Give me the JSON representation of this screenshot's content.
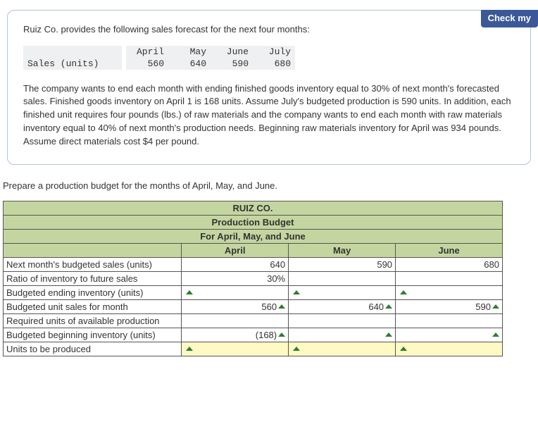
{
  "header": {
    "check_button": "Check my"
  },
  "problem": {
    "intro": "Ruiz Co. provides the following sales forecast for the next four months:",
    "forecast": {
      "row_label": "Sales (units)",
      "months": [
        "April",
        "May",
        "June",
        "July"
      ],
      "values": [
        "560",
        "640",
        "590",
        "680"
      ]
    },
    "narrative": "The company wants to end each month with ending finished goods inventory equal to 30% of next month's forecasted sales. Finished goods inventory on April 1 is 168 units. Assume July's budgeted production is 590 units. In addition, each finished unit requires four pounds (lbs.) of raw materials and the company wants to end each month with raw materials inventory equal to 40% of next month's production needs. Beginning raw materials inventory for April was 934 pounds. Assume direct materials cost $4 per pound."
  },
  "instruction": "Prepare a production budget for the months of April, May, and June.",
  "budget": {
    "company": "RUIZ CO.",
    "title": "Production Budget",
    "period": "For April, May, and June",
    "columns": [
      "April",
      "May",
      "June"
    ],
    "rows": [
      {
        "label": "Next month's budgeted sales (units)",
        "vals": [
          "640",
          "590",
          "680"
        ],
        "ticks": [
          false,
          false,
          false
        ],
        "hl": [
          false,
          false,
          false
        ]
      },
      {
        "label": "Ratio of inventory to future sales",
        "vals": [
          "30%",
          "",
          ""
        ],
        "ticks": [
          false,
          false,
          false
        ],
        "hl": [
          false,
          false,
          false
        ]
      },
      {
        "label": "Budgeted ending inventory (units)",
        "vals": [
          "",
          "",
          ""
        ],
        "ticks": [
          true,
          true,
          true
        ],
        "hl": [
          false,
          false,
          false
        ]
      },
      {
        "label": "Budgeted unit sales for month",
        "vals": [
          "560",
          "640",
          "590"
        ],
        "ticks": [
          true,
          true,
          true
        ],
        "hl": [
          false,
          false,
          false
        ],
        "tick_after": true
      },
      {
        "label": "Required units of available production",
        "vals": [
          "",
          "",
          ""
        ],
        "ticks": [
          false,
          false,
          false
        ],
        "hl": [
          false,
          false,
          false
        ]
      },
      {
        "label": "Budgeted beginning inventory (units)",
        "vals": [
          "(168)",
          "",
          ""
        ],
        "ticks": [
          true,
          true,
          true
        ],
        "hl": [
          false,
          false,
          false
        ],
        "tick_after": true
      },
      {
        "label": "Units to be produced",
        "vals": [
          "",
          "",
          ""
        ],
        "ticks": [
          true,
          true,
          true
        ],
        "hl": [
          true,
          true,
          true
        ]
      }
    ]
  },
  "colors": {
    "header_green": "#c4d6a0",
    "highlight_yellow": "#fff9c4",
    "button_blue": "#3b5998",
    "box_border": "#b0c4de",
    "tick_green": "#2e7d32"
  }
}
